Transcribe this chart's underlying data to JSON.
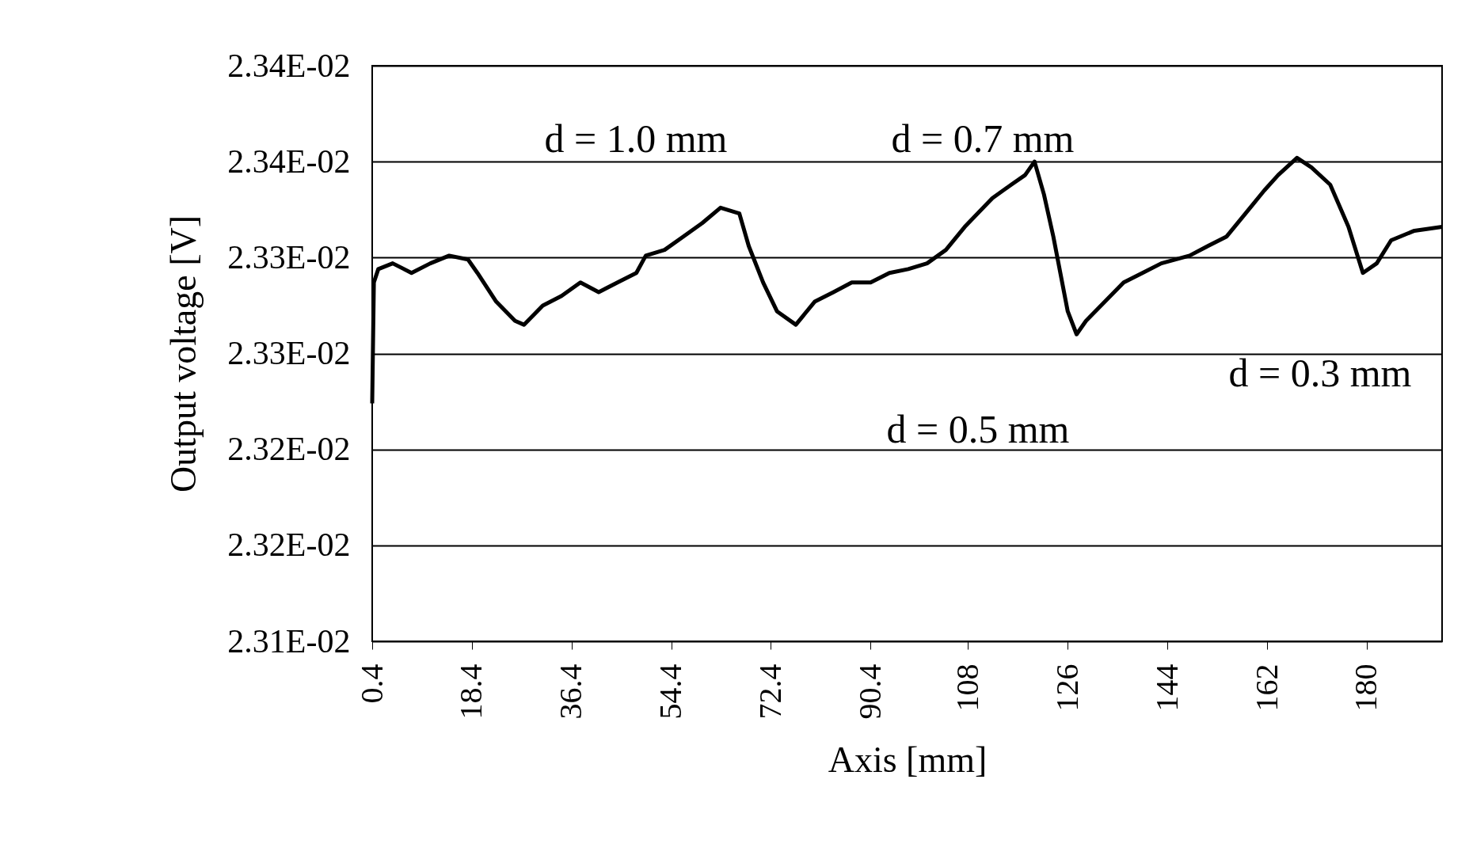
{
  "chart_data": {
    "type": "line",
    "xlabel": "Axis [mm]",
    "ylabel": "Output voltage [V]",
    "x": [
      0.4,
      0.7,
      1.5,
      4.1,
      7.5,
      10.9,
      14.3,
      17.7,
      19.4,
      22.8,
      26.2,
      27.8,
      31.2,
      34.6,
      38.0,
      41.3,
      44.7,
      48.1,
      49.8,
      53.2,
      56.6,
      60.0,
      63.3,
      66.7,
      68.4,
      71.0,
      73.5,
      76.9,
      80.3,
      83.7,
      87.0,
      90.4,
      93.8,
      97.2,
      100.6,
      104.0,
      107.4,
      112.4,
      115.8,
      118.3,
      120.0,
      121.7,
      123.4,
      126.0,
      127.6,
      129.3,
      132.7,
      136.1,
      139.5,
      142.9,
      148.0,
      151.3,
      154.7,
      158.1,
      161.5,
      164.0,
      167.4,
      170.0,
      173.4,
      176.7,
      179.3,
      181.8,
      184.4,
      188.6,
      193.6
    ],
    "series": [
      {
        "color": "#000000",
        "values": [
          0.023224,
          0.023287,
          0.023294,
          0.023297,
          0.023292,
          0.023297,
          0.023301,
          0.023299,
          0.023292,
          0.023277,
          0.023267,
          0.023265,
          0.023275,
          0.02328,
          0.023287,
          0.023282,
          0.023287,
          0.023292,
          0.023301,
          0.023304,
          0.023311,
          0.023318,
          0.023326,
          0.023323,
          0.023306,
          0.023287,
          0.023272,
          0.023265,
          0.023277,
          0.023282,
          0.023287,
          0.023287,
          0.023292,
          0.023294,
          0.023297,
          0.023304,
          0.023316,
          0.023331,
          0.023338,
          0.023343,
          0.02335,
          0.023333,
          0.023311,
          0.023272,
          0.02326,
          0.023267,
          0.023277,
          0.023287,
          0.023292,
          0.023297,
          0.023301,
          0.023306,
          0.023311,
          0.023323,
          0.023335,
          0.023343,
          0.023352,
          0.023347,
          0.023338,
          0.023316,
          0.023292,
          0.023297,
          0.023309,
          0.023314,
          0.023316
        ]
      }
    ],
    "xlim": [
      0.4,
      193.6
    ],
    "xticks": [
      0.4,
      18.4,
      36.4,
      54.4,
      72.4,
      90.4,
      108,
      126,
      144,
      162,
      180
    ],
    "ylim": [
      0.0231,
      0.0234
    ],
    "yticks": [
      {
        "value": 0.0231,
        "label": "2.31E-02"
      },
      {
        "value": 0.02315,
        "label": "2.32E-02"
      },
      {
        "value": 0.0232,
        "label": "2.32E-02"
      },
      {
        "value": 0.02325,
        "label": "2.33E-02"
      },
      {
        "value": 0.0233,
        "label": "2.33E-02"
      },
      {
        "value": 0.02335,
        "label": "2.34E-02"
      },
      {
        "value": 0.0234,
        "label": "2.34E-02"
      }
    ],
    "grid": "y",
    "annotations": [
      "d = 1.0 mm",
      "d = 0.7 mm",
      "d = 0.5 mm",
      "d = 0.3 mm"
    ]
  }
}
